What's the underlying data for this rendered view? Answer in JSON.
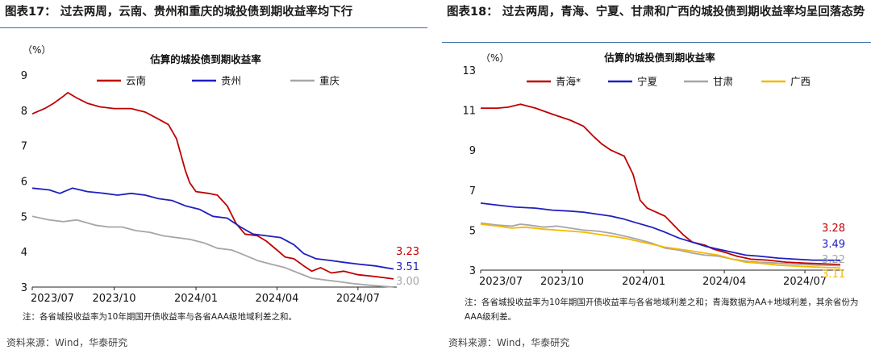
{
  "charts": [
    {
      "figure_title": "图表17：  过去两周，云南、贵州和重庆的城投债到期收益率均下行",
      "note": "注：各省城投收益率为10年期国开债收益率与各省AAA级地域利差之和。",
      "source": "资料来源：Wind，华泰研究"
    },
    {
      "figure_title": "图表18：  过去两周，青海、宁夏、甘肃和广西的城投债到期收益率均呈回落态势",
      "note": "注：各省城投收益率为10年期国开债收益率与各省地域利差之和；青海数据为AA+地域利差，其余省份为AAA级利差。",
      "source": "资料来源：Wind，华泰研究"
    }
  ],
  "chart_data": [
    {
      "type": "line",
      "title": "估算的城投债到期收益率",
      "ylabel": "（%）",
      "ylim": [
        3,
        9
      ],
      "yticks": [
        3,
        4,
        5,
        6,
        7,
        8,
        9
      ],
      "x_start": "2023/07/01",
      "x_end": "2024/08/10",
      "xticks": [
        "2023/07",
        "2023/10",
        "2024/01",
        "2024/04",
        "2024/07"
      ],
      "series": [
        {
          "name": "云南",
          "color": "#c00000",
          "end_label": "3.23",
          "points": [
            [
              "2023/07/01",
              7.9
            ],
            [
              "2023/07/15",
              8.05
            ],
            [
              "2023/07/25",
              8.2
            ],
            [
              "2023/08/05",
              8.4
            ],
            [
              "2023/08/10",
              8.5
            ],
            [
              "2023/08/20",
              8.35
            ],
            [
              "2023/09/01",
              8.2
            ],
            [
              "2023/09/15",
              8.1
            ],
            [
              "2023/10/01",
              8.05
            ],
            [
              "2023/10/20",
              8.05
            ],
            [
              "2023/11/05",
              7.95
            ],
            [
              "2023/11/20",
              7.75
            ],
            [
              "2023/12/01",
              7.6
            ],
            [
              "2023/12/10",
              7.2
            ],
            [
              "2023/12/20",
              6.3
            ],
            [
              "2023/12/25",
              5.95
            ],
            [
              "2024/01/01",
              5.7
            ],
            [
              "2024/01/15",
              5.65
            ],
            [
              "2024/01/25",
              5.6
            ],
            [
              "2024/02/05",
              5.3
            ],
            [
              "2024/02/15",
              4.8
            ],
            [
              "2024/02/25",
              4.5
            ],
            [
              "2024/03/10",
              4.45
            ],
            [
              "2024/03/20",
              4.3
            ],
            [
              "2024/04/01",
              4.05
            ],
            [
              "2024/04/10",
              3.85
            ],
            [
              "2024/04/20",
              3.8
            ],
            [
              "2024/05/01",
              3.6
            ],
            [
              "2024/05/10",
              3.45
            ],
            [
              "2024/05/20",
              3.55
            ],
            [
              "2024/06/01",
              3.4
            ],
            [
              "2024/06/15",
              3.45
            ],
            [
              "2024/07/01",
              3.35
            ],
            [
              "2024/07/20",
              3.3
            ],
            [
              "2024/08/10",
              3.23
            ]
          ]
        },
        {
          "name": "贵州",
          "color": "#1f1fbf",
          "end_label": "3.51",
          "points": [
            [
              "2023/07/01",
              5.8
            ],
            [
              "2023/07/20",
              5.75
            ],
            [
              "2023/08/01",
              5.65
            ],
            [
              "2023/08/15",
              5.8
            ],
            [
              "2023/09/01",
              5.7
            ],
            [
              "2023/09/20",
              5.65
            ],
            [
              "2023/10/05",
              5.6
            ],
            [
              "2023/10/20",
              5.65
            ],
            [
              "2023/11/05",
              5.6
            ],
            [
              "2023/11/20",
              5.5
            ],
            [
              "2023/12/05",
              5.45
            ],
            [
              "2023/12/20",
              5.3
            ],
            [
              "2024/01/05",
              5.2
            ],
            [
              "2024/01/20",
              5.0
            ],
            [
              "2024/02/05",
              4.95
            ],
            [
              "2024/02/20",
              4.7
            ],
            [
              "2024/03/05",
              4.5
            ],
            [
              "2024/03/20",
              4.45
            ],
            [
              "2024/04/05",
              4.4
            ],
            [
              "2024/04/20",
              4.2
            ],
            [
              "2024/05/01",
              3.95
            ],
            [
              "2024/05/15",
              3.8
            ],
            [
              "2024/06/01",
              3.75
            ],
            [
              "2024/06/15",
              3.7
            ],
            [
              "2024/07/01",
              3.65
            ],
            [
              "2024/07/20",
              3.6
            ],
            [
              "2024/08/10",
              3.51
            ]
          ]
        },
        {
          "name": "重庆",
          "color": "#a6a6a6",
          "end_label": "3.00",
          "points": [
            [
              "2023/07/01",
              5.0
            ],
            [
              "2023/07/20",
              4.9
            ],
            [
              "2023/08/05",
              4.85
            ],
            [
              "2023/08/20",
              4.9
            ],
            [
              "2023/09/10",
              4.75
            ],
            [
              "2023/09/25",
              4.7
            ],
            [
              "2023/10/10",
              4.7
            ],
            [
              "2023/10/25",
              4.6
            ],
            [
              "2023/11/10",
              4.55
            ],
            [
              "2023/11/25",
              4.45
            ],
            [
              "2023/12/10",
              4.4
            ],
            [
              "2023/12/25",
              4.35
            ],
            [
              "2024/01/10",
              4.25
            ],
            [
              "2024/01/25",
              4.1
            ],
            [
              "2024/02/10",
              4.05
            ],
            [
              "2024/02/25",
              3.9
            ],
            [
              "2024/03/10",
              3.75
            ],
            [
              "2024/03/25",
              3.65
            ],
            [
              "2024/04/10",
              3.55
            ],
            [
              "2024/04/25",
              3.4
            ],
            [
              "2024/05/10",
              3.25
            ],
            [
              "2024/05/25",
              3.2
            ],
            [
              "2024/06/10",
              3.15
            ],
            [
              "2024/06/25",
              3.1
            ],
            [
              "2024/07/15",
              3.05
            ],
            [
              "2024/08/10",
              3.0
            ]
          ]
        }
      ]
    },
    {
      "type": "line",
      "title": "估算的城投债到期收益率",
      "ylabel": "（%）",
      "ylim": [
        3,
        13
      ],
      "yticks": [
        3,
        5,
        7,
        9,
        11,
        13
      ],
      "x_start": "2023/07/01",
      "x_end": "2024/08/10",
      "xticks": [
        "2023/07",
        "2023/10",
        "2024/01",
        "2024/04",
        "2024/07"
      ],
      "series": [
        {
          "name": "青海*",
          "color": "#c00000",
          "end_label": "3.28",
          "points": [
            [
              "2023/07/01",
              11.1
            ],
            [
              "2023/07/20",
              11.1
            ],
            [
              "2023/08/01",
              11.15
            ],
            [
              "2023/08/15",
              11.3
            ],
            [
              "2023/09/01",
              11.1
            ],
            [
              "2023/09/20",
              10.8
            ],
            [
              "2023/10/10",
              10.5
            ],
            [
              "2023/10/25",
              10.2
            ],
            [
              "2023/11/05",
              9.7
            ],
            [
              "2023/11/15",
              9.3
            ],
            [
              "2023/11/25",
              9.0
            ],
            [
              "2023/12/10",
              8.7
            ],
            [
              "2023/12/20",
              7.8
            ],
            [
              "2023/12/28",
              6.5
            ],
            [
              "2024/01/05",
              6.1
            ],
            [
              "2024/01/15",
              5.9
            ],
            [
              "2024/01/25",
              5.7
            ],
            [
              "2024/02/05",
              5.2
            ],
            [
              "2024/02/15",
              4.75
            ],
            [
              "2024/02/25",
              4.4
            ],
            [
              "2024/03/10",
              4.25
            ],
            [
              "2024/03/20",
              4.05
            ],
            [
              "2024/04/01",
              3.9
            ],
            [
              "2024/04/15",
              3.7
            ],
            [
              "2024/05/01",
              3.55
            ],
            [
              "2024/05/20",
              3.5
            ],
            [
              "2024/06/10",
              3.4
            ],
            [
              "2024/07/01",
              3.35
            ],
            [
              "2024/08/10",
              3.28
            ]
          ]
        },
        {
          "name": "宁夏",
          "color": "#1f1fbf",
          "end_label": "3.49",
          "points": [
            [
              "2023/07/01",
              6.35
            ],
            [
              "2023/07/20",
              6.25
            ],
            [
              "2023/08/10",
              6.15
            ],
            [
              "2023/09/01",
              6.1
            ],
            [
              "2023/09/20",
              6.0
            ],
            [
              "2023/10/10",
              5.95
            ],
            [
              "2023/10/25",
              5.9
            ],
            [
              "2023/11/10",
              5.8
            ],
            [
              "2023/11/25",
              5.7
            ],
            [
              "2023/12/10",
              5.55
            ],
            [
              "2023/12/25",
              5.35
            ],
            [
              "2024/01/10",
              5.15
            ],
            [
              "2024/01/25",
              4.9
            ],
            [
              "2024/02/10",
              4.6
            ],
            [
              "2024/02/25",
              4.4
            ],
            [
              "2024/03/10",
              4.2
            ],
            [
              "2024/03/25",
              4.05
            ],
            [
              "2024/04/10",
              3.9
            ],
            [
              "2024/04/25",
              3.75
            ],
            [
              "2024/05/10",
              3.7
            ],
            [
              "2024/06/01",
              3.6
            ],
            [
              "2024/06/20",
              3.55
            ],
            [
              "2024/07/10",
              3.5
            ],
            [
              "2024/08/10",
              3.49
            ]
          ]
        },
        {
          "name": "甘肃",
          "color": "#a6a6a6",
          "end_label": "3.22",
          "points": [
            [
              "2023/07/01",
              5.35
            ],
            [
              "2023/07/20",
              5.25
            ],
            [
              "2023/08/05",
              5.2
            ],
            [
              "2023/08/15",
              5.3
            ],
            [
              "2023/08/25",
              5.25
            ],
            [
              "2023/09/10",
              5.15
            ],
            [
              "2023/09/25",
              5.2
            ],
            [
              "2023/10/10",
              5.1
            ],
            [
              "2023/10/25",
              5.0
            ],
            [
              "2023/11/10",
              4.95
            ],
            [
              "2023/11/25",
              4.85
            ],
            [
              "2023/12/10",
              4.7
            ],
            [
              "2023/12/25",
              4.55
            ],
            [
              "2024/01/10",
              4.35
            ],
            [
              "2024/01/25",
              4.1
            ],
            [
              "2024/02/10",
              4.0
            ],
            [
              "2024/02/25",
              3.85
            ],
            [
              "2024/03/10",
              3.75
            ],
            [
              "2024/03/25",
              3.7
            ],
            [
              "2024/04/10",
              3.55
            ],
            [
              "2024/04/25",
              3.45
            ],
            [
              "2024/05/10",
              3.4
            ],
            [
              "2024/06/01",
              3.35
            ],
            [
              "2024/06/20",
              3.3
            ],
            [
              "2024/07/15",
              3.25
            ],
            [
              "2024/08/10",
              3.22
            ]
          ]
        },
        {
          "name": "广西",
          "color": "#f5b800",
          "end_label": "3.11",
          "points": [
            [
              "2023/07/01",
              5.3
            ],
            [
              "2023/07/20",
              5.2
            ],
            [
              "2023/08/05",
              5.1
            ],
            [
              "2023/08/20",
              5.15
            ],
            [
              "2023/09/10",
              5.05
            ],
            [
              "2023/09/25",
              5.0
            ],
            [
              "2023/10/10",
              4.95
            ],
            [
              "2023/10/25",
              4.9
            ],
            [
              "2023/11/10",
              4.8
            ],
            [
              "2023/11/25",
              4.7
            ],
            [
              "2023/12/10",
              4.6
            ],
            [
              "2023/12/25",
              4.45
            ],
            [
              "2024/01/10",
              4.3
            ],
            [
              "2024/01/25",
              4.15
            ],
            [
              "2024/02/10",
              4.05
            ],
            [
              "2024/02/25",
              3.95
            ],
            [
              "2024/03/10",
              3.85
            ],
            [
              "2024/03/25",
              3.75
            ],
            [
              "2024/04/10",
              3.55
            ],
            [
              "2024/04/25",
              3.4
            ],
            [
              "2024/05/10",
              3.35
            ],
            [
              "2024/06/01",
              3.25
            ],
            [
              "2024/06/20",
              3.2
            ],
            [
              "2024/07/15",
              3.15
            ],
            [
              "2024/08/10",
              3.11
            ]
          ]
        }
      ]
    }
  ]
}
